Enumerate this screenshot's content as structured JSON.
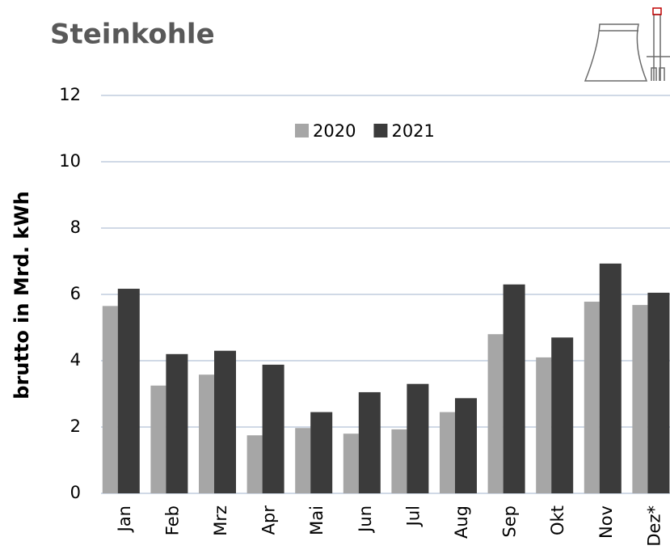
{
  "chart_data": {
    "type": "bar",
    "title": "Steinkohle",
    "y_label": "brutto in  Mrd. kWh",
    "categories": [
      "Jan",
      "Feb",
      "Mrz",
      "Apr",
      "Mai",
      "Jun",
      "Jul",
      "Aug",
      "Sep",
      "Okt",
      "Nov",
      "Dez*"
    ],
    "series": [
      {
        "name": "2020",
        "color": "#a6a6a6",
        "values": [
          5.65,
          3.25,
          3.58,
          1.75,
          1.97,
          1.8,
          1.93,
          2.45,
          4.8,
          4.1,
          5.78,
          5.68
        ]
      },
      {
        "name": "2021",
        "color": "#3b3b3b",
        "values": [
          6.17,
          4.2,
          4.3,
          3.88,
          2.45,
          3.05,
          3.3,
          2.87,
          6.3,
          4.7,
          6.93,
          6.05
        ]
      }
    ],
    "ylim": [
      0,
      12
    ],
    "yticks": [
      0,
      2,
      4,
      6,
      8,
      10,
      12
    ],
    "grid": true
  }
}
